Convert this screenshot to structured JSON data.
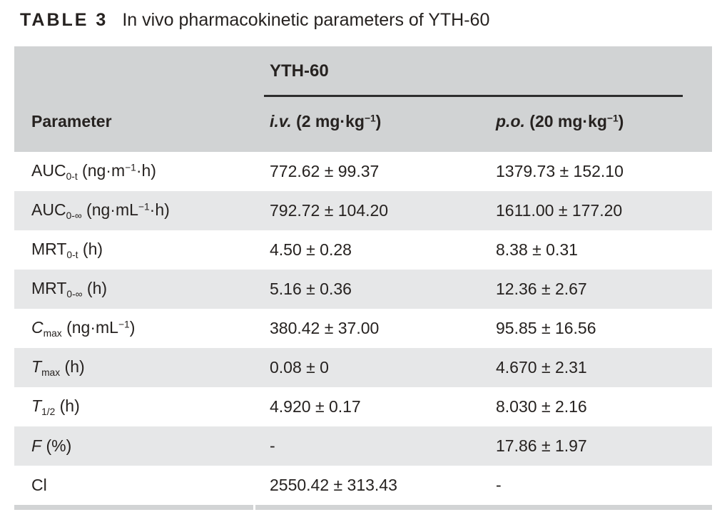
{
  "caption": {
    "label": "TABLE 3",
    "text": "In vivo pharmacokinetic parameters of YTH-60"
  },
  "table": {
    "group_header": "YTH-60",
    "columns": {
      "parameter": "Parameter",
      "iv": [
        {
          "s": "bi",
          "t": "i.v."
        },
        {
          "s": "b",
          "t": " (2 mg·kg"
        },
        {
          "s": "bsup",
          "t": "−1"
        },
        {
          "s": "b",
          "t": ")"
        }
      ],
      "po": [
        {
          "s": "bi",
          "t": "p.o."
        },
        {
          "s": "b",
          "t": " (20 mg·kg"
        },
        {
          "s": "bsup",
          "t": "−1"
        },
        {
          "s": "b",
          "t": ")"
        }
      ]
    },
    "rows": [
      {
        "param": [
          {
            "s": "n",
            "t": "AUC"
          },
          {
            "s": "sub",
            "t": "0-t"
          },
          {
            "s": "n",
            "t": " (ng·m"
          },
          {
            "s": "sup",
            "t": "−1"
          },
          {
            "s": "n",
            "t": "·h)"
          }
        ],
        "iv": "772.62 ± 99.37",
        "po": "1379.73 ± 152.10"
      },
      {
        "param": [
          {
            "s": "n",
            "t": "AUC"
          },
          {
            "s": "sub",
            "t": "0-∞"
          },
          {
            "s": "n",
            "t": " (ng·mL"
          },
          {
            "s": "sup",
            "t": "−1"
          },
          {
            "s": "n",
            "t": "·h)"
          }
        ],
        "iv": "792.72 ± 104.20",
        "po": "1611.00 ± 177.20"
      },
      {
        "param": [
          {
            "s": "n",
            "t": "MRT"
          },
          {
            "s": "sub",
            "t": "0-t"
          },
          {
            "s": "n",
            "t": " (h)"
          }
        ],
        "iv": "4.50 ± 0.28",
        "po": "8.38 ± 0.31"
      },
      {
        "param": [
          {
            "s": "n",
            "t": "MRT"
          },
          {
            "s": "sub",
            "t": "0-∞"
          },
          {
            "s": "n",
            "t": " (h)"
          }
        ],
        "iv": "5.16 ± 0.36",
        "po": "12.36 ± 2.67"
      },
      {
        "param": [
          {
            "s": "i",
            "t": "C"
          },
          {
            "s": "sub",
            "t": "max"
          },
          {
            "s": "n",
            "t": " (ng·mL"
          },
          {
            "s": "sup",
            "t": "−1"
          },
          {
            "s": "n",
            "t": ")"
          }
        ],
        "iv": "380.42 ± 37.00",
        "po": "95.85 ± 16.56"
      },
      {
        "param": [
          {
            "s": "i",
            "t": "T"
          },
          {
            "s": "sub",
            "t": "max"
          },
          {
            "s": "n",
            "t": " (h)"
          }
        ],
        "iv": "0.08 ± 0",
        "po": "4.670 ± 2.31"
      },
      {
        "param": [
          {
            "s": "i",
            "t": "T"
          },
          {
            "s": "sub",
            "t": "1/2"
          },
          {
            "s": "n",
            "t": " (h)"
          }
        ],
        "iv": "4.920 ± 0.17",
        "po": "8.030 ± 2.16"
      },
      {
        "param": [
          {
            "s": "i",
            "t": "F"
          },
          {
            "s": "n",
            "t": " (%)"
          }
        ],
        "iv": "-",
        "po": "17.86 ± 1.97"
      },
      {
        "param": [
          {
            "s": "n",
            "t": "Cl"
          }
        ],
        "iv": "2550.42 ± 313.43",
        "po": "-"
      }
    ],
    "colors": {
      "header_bg": "#d1d3d4",
      "stripe_bg": "#e6e7e8",
      "rule": "#2d2d2d",
      "text": "#262220",
      "bottom_bar": "#d2d4d5"
    }
  }
}
